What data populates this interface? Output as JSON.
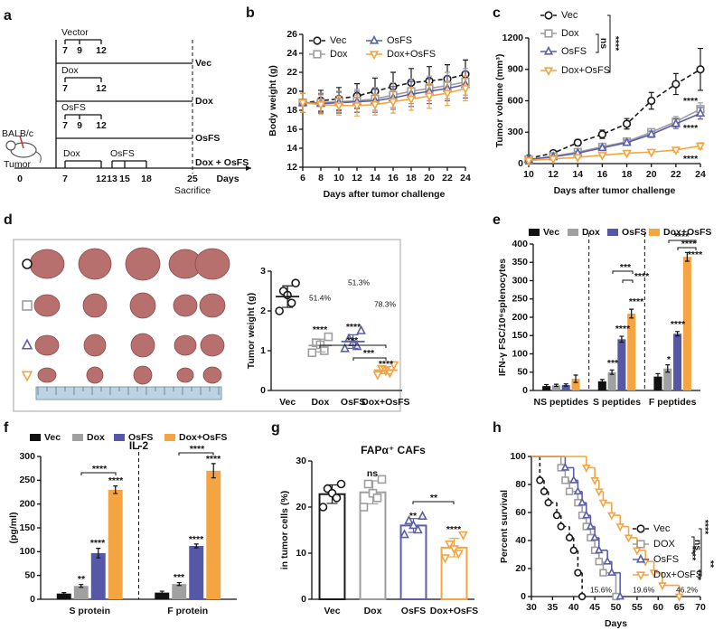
{
  "panel_labels": [
    "a",
    "b",
    "c",
    "d",
    "e",
    "f",
    "g",
    "h"
  ],
  "schedule": {
    "rows": [
      {
        "drug": "Vector",
        "days": [
          "7",
          "9",
          "12"
        ],
        "group": "Vec"
      },
      {
        "drug": "Dox",
        "days": [
          "7",
          "12"
        ],
        "group": "Dox"
      },
      {
        "drug": "OsFS",
        "days": [
          "7",
          "9",
          "12"
        ],
        "group": "OsFS"
      }
    ],
    "combo": {
      "drugs": [
        "Dox",
        "OsFS"
      ],
      "group": "Dox + OsFS"
    },
    "axis_days": [
      "0",
      "7",
      "12",
      "13",
      "15",
      "18",
      "25"
    ],
    "axis_label": "Days",
    "end_label": "Sacrifice",
    "mouse": "BALB/c",
    "inoculation": "Tumor"
  },
  "chart_data": [
    {
      "type": "line",
      "ylabel": "Body weight (g)",
      "xlabel": "Days after tumor challenge",
      "x": [
        6,
        8,
        10,
        12,
        14,
        16,
        18,
        20,
        22,
        24
      ],
      "xlim": [
        6,
        24
      ],
      "xticks": [
        6,
        8,
        10,
        12,
        14,
        16,
        18,
        20,
        22,
        24
      ],
      "ylim": [
        12,
        26
      ],
      "yticks": [
        12,
        14,
        16,
        18,
        20,
        22,
        24,
        26
      ],
      "series": [
        {
          "name": "Vec",
          "color": "#1a1a1a",
          "marker": "circle",
          "dash": true,
          "values": [
            18.8,
            19.0,
            19.2,
            19.5,
            20.0,
            20.5,
            20.9,
            21.1,
            21.3,
            21.8
          ],
          "errors": [
            1.0,
            1.1,
            1.2,
            1.3,
            1.4,
            1.5,
            1.5,
            1.5,
            1.5,
            1.5
          ]
        },
        {
          "name": "Dox",
          "color": "#9e9e9e",
          "marker": "square",
          "values": [
            18.8,
            18.8,
            18.9,
            19.0,
            19.2,
            19.6,
            20.0,
            20.3,
            20.6,
            21.0
          ],
          "errors": [
            1.0,
            1.0,
            1.1,
            1.2,
            1.2,
            1.3,
            1.3,
            1.3,
            1.4,
            1.4
          ]
        },
        {
          "name": "OsFS",
          "color": "#5c5fa8",
          "marker": "triangle",
          "values": [
            18.8,
            18.7,
            18.8,
            18.9,
            19.0,
            19.3,
            19.7,
            20.0,
            20.3,
            20.7
          ],
          "errors": [
            1.0,
            1.0,
            1.1,
            1.1,
            1.2,
            1.2,
            1.3,
            1.3,
            1.3,
            1.4
          ]
        },
        {
          "name": "Dox+OsFS",
          "color": "#f5a442",
          "marker": "triangle-down",
          "values": [
            18.8,
            18.6,
            18.5,
            18.5,
            18.6,
            18.9,
            19.2,
            19.5,
            19.8,
            20.3
          ],
          "errors": [
            1.0,
            1.0,
            1.0,
            1.1,
            1.1,
            1.2,
            1.2,
            1.3,
            1.3,
            1.3
          ]
        }
      ]
    },
    {
      "type": "line",
      "ylabel": "Tumor volume (mm³)",
      "xlabel": "Days after tumor challenge",
      "x": [
        10,
        12,
        14,
        16,
        18,
        20,
        22,
        24
      ],
      "xlim": [
        10,
        24
      ],
      "xticks": [
        10,
        12,
        14,
        16,
        18,
        20,
        22,
        24
      ],
      "ylim": [
        0,
        1200
      ],
      "yticks": [
        0,
        300,
        600,
        900,
        1200
      ],
      "series": [
        {
          "name": "Vec",
          "color": "#1a1a1a",
          "marker": "circle",
          "dash": true,
          "values": [
            50,
            100,
            200,
            280,
            380,
            600,
            760,
            900
          ],
          "errors": [
            10,
            20,
            30,
            40,
            50,
            80,
            100,
            200
          ]
        },
        {
          "name": "Dox",
          "color": "#9e9e9e",
          "marker": "square",
          "values": [
            40,
            70,
            110,
            160,
            210,
            300,
            400,
            520
          ],
          "errors": [
            8,
            10,
            15,
            20,
            25,
            30,
            50,
            60
          ]
        },
        {
          "name": "OsFS",
          "color": "#5c5fa8",
          "marker": "triangle",
          "values": [
            40,
            65,
            100,
            150,
            200,
            280,
            380,
            480
          ],
          "errors": [
            8,
            10,
            15,
            20,
            25,
            30,
            45,
            55
          ]
        },
        {
          "name": "Dox+OsFS",
          "color": "#f5a442",
          "marker": "triangle-down",
          "values": [
            30,
            45,
            60,
            80,
            100,
            110,
            130,
            170
          ],
          "errors": [
            5,
            8,
            10,
            12,
            15,
            15,
            20,
            30
          ]
        }
      ],
      "annotations": [
        "ns",
        "****",
        "****",
        "****",
        "****"
      ]
    },
    {
      "type": "dot",
      "ylabel": "Tumor weight (g)",
      "categories": [
        "Vec",
        "Dox",
        "OsFS",
        "Dox+OsFS"
      ],
      "ylim": [
        0,
        3
      ],
      "yticks": [
        0,
        1,
        2,
        3
      ],
      "colors": [
        "#1a1a1a",
        "#9e9e9e",
        "#5c5fa8",
        "#f5a442"
      ],
      "markers": [
        "circle",
        "square",
        "triangle",
        "triangle-down"
      ],
      "points": [
        [
          2.7,
          2.5,
          2.4,
          2.2,
          2.0
        ],
        [
          1.35,
          1.2,
          1.15,
          1.0,
          0.95
        ],
        [
          1.5,
          1.3,
          1.2,
          1.1,
          1.05
        ],
        [
          0.65,
          0.55,
          0.5,
          0.45,
          0.4
        ]
      ],
      "means": [
        2.36,
        1.13,
        1.23,
        0.51
      ],
      "sds": [
        0.27,
        0.16,
        0.17,
        0.09
      ],
      "annotations": [
        "51.4%",
        "51.3%",
        "78.3%",
        "***",
        "***",
        "****",
        "****",
        "****"
      ]
    },
    {
      "type": "bar",
      "ylabel": "IFN-γ FSC/10⁶splenocytes",
      "categories": [
        "NS peptides",
        "S peptides",
        "F peptides"
      ],
      "ylim": [
        0,
        400
      ],
      "yticks": [
        0,
        50,
        100,
        150,
        200,
        250,
        300,
        350,
        400
      ],
      "dividers": true,
      "series": [
        {
          "name": "Vec",
          "color": "#111111",
          "values": [
            12,
            25,
            38
          ],
          "errors": [
            4,
            5,
            8
          ]
        },
        {
          "name": "Dox",
          "color": "#a0a0a0",
          "values": [
            14,
            50,
            60
          ],
          "errors": [
            3,
            6,
            10
          ]
        },
        {
          "name": "OsFS",
          "color": "#5558a6",
          "values": [
            15,
            140,
            155
          ],
          "errors": [
            3,
            8,
            6
          ]
        },
        {
          "name": "Dox+OsFS",
          "color": "#f5a442",
          "values": [
            32,
            210,
            365
          ],
          "errors": [
            10,
            12,
            12
          ]
        }
      ],
      "annotations": [
        "***",
        "****",
        "****",
        "***",
        "****",
        "*",
        "****",
        "****",
        "****",
        "****"
      ]
    },
    {
      "type": "bar",
      "title": "IL-2",
      "ylabel": "(pg/ml)",
      "categories": [
        "S protein",
        "F protein"
      ],
      "ylim": [
        0,
        300
      ],
      "yticks": [
        0,
        50,
        100,
        150,
        200,
        250,
        300
      ],
      "dividers": true,
      "series": [
        {
          "name": "Vec",
          "color": "#111111",
          "values": [
            12,
            14
          ],
          "errors": [
            2,
            3
          ]
        },
        {
          "name": "Dox",
          "color": "#a0a0a0",
          "values": [
            28,
            32
          ],
          "errors": [
            3,
            3
          ]
        },
        {
          "name": "OsFS",
          "color": "#5558a6",
          "values": [
            97,
            112
          ],
          "errors": [
            10,
            4
          ]
        },
        {
          "name": "Dox+OsFS",
          "color": "#f5a442",
          "values": [
            230,
            270
          ],
          "errors": [
            8,
            15
          ]
        }
      ],
      "annotations": [
        "**",
        "****",
        "****",
        "****",
        "***",
        "****",
        "****",
        "****"
      ]
    },
    {
      "type": "bar",
      "title": "FAPα⁺ CAFs",
      "ylabel": "in tumor cells (%)",
      "categories": [
        "Vec",
        "Dox",
        "OsFS",
        "Dox+OsFS"
      ],
      "ylim": [
        0,
        30
      ],
      "yticks": [
        0,
        10,
        20,
        30
      ],
      "values": [
        22.8,
        23.2,
        16,
        11.2
      ],
      "errors": [
        2,
        2.5,
        1.5,
        2
      ],
      "points": [
        [
          25,
          24,
          23,
          22,
          20
        ],
        [
          26,
          25,
          23,
          22,
          20
        ],
        [
          18,
          17,
          16,
          15,
          14
        ],
        [
          14,
          12,
          11,
          10,
          9
        ]
      ],
      "colors": [
        "#1a1a1a",
        "#9e9e9e",
        "#5c5fa8",
        "#f5a442"
      ],
      "markers": [
        "circle",
        "square",
        "triangle",
        "triangle-down"
      ],
      "annotations": [
        "ns",
        "**",
        "****",
        "**"
      ]
    },
    {
      "type": "step",
      "ylabel": "Percent survival",
      "xlabel": "Days",
      "xlim": [
        30,
        70
      ],
      "xticks": [
        30,
        35,
        40,
        45,
        50,
        55,
        60,
        65,
        70
      ],
      "ylim": [
        0,
        100
      ],
      "yticks": [
        0,
        20,
        40,
        60,
        80,
        100
      ],
      "series": [
        {
          "name": "Vec",
          "color": "#1a1a1a",
          "marker": "circle",
          "dash": true,
          "x": [
            30,
            32,
            33,
            34,
            36,
            37,
            39,
            40,
            41,
            42
          ],
          "values": [
            100,
            83,
            75,
            67,
            58,
            50,
            42,
            33,
            17,
            0
          ]
        },
        {
          "name": "DOX",
          "color": "#9e9e9e",
          "marker": "square",
          "x": [
            30,
            37,
            38,
            39,
            41,
            42,
            43,
            44,
            45,
            46,
            47,
            50
          ],
          "values": [
            100,
            92,
            83,
            75,
            67,
            58,
            50,
            42,
            33,
            25,
            17,
            0
          ]
        },
        {
          "name": "OsFS",
          "color": "#5c5fa8",
          "marker": "triangle",
          "x": [
            30,
            38,
            40,
            41,
            42,
            43,
            44,
            45,
            46,
            48,
            49,
            51
          ],
          "values": [
            100,
            92,
            83,
            75,
            67,
            58,
            50,
            42,
            33,
            25,
            17,
            0
          ]
        },
        {
          "name": "Dox+OsFS",
          "color": "#f5a442",
          "marker": "triangle-down",
          "x": [
            30,
            43,
            45,
            46,
            47,
            49,
            51,
            53,
            55,
            57,
            59,
            61,
            65
          ],
          "values": [
            100,
            92,
            83,
            75,
            67,
            58,
            50,
            42,
            33,
            25,
            17,
            8,
            0
          ]
        }
      ],
      "annotations": [
        "15.6%",
        "19.6%",
        "46.2%",
        "****",
        "ns",
        "****",
        "***",
        "**"
      ]
    }
  ]
}
